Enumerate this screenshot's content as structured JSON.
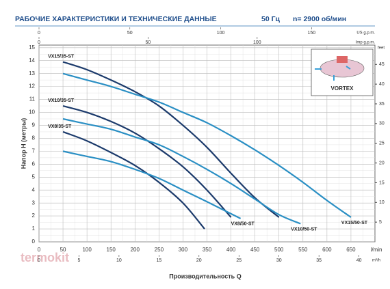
{
  "chart_data": {
    "type": "line",
    "title": "РАБОЧИЕ ХАРАКТЕРИСТИКИ И ТЕХНИЧЕСКИЕ ДАННЫЕ",
    "frequency": "50 Гц",
    "speed": "n= 2900 об/мин",
    "watermark": "termokit",
    "inset_label": "VORTEX",
    "y_label": "Напор H (метры)",
    "x_label": "Производительность Q",
    "x_unit": "l/min",
    "x2_unit": "m³/h",
    "x3_unit": "US g.p.m.",
    "x4_unit": "Imp g.p.m.",
    "y2_unit": "feet",
    "grid": true,
    "xlim": [
      0,
      700
    ],
    "xticks": [
      0,
      50,
      100,
      150,
      200,
      250,
      300,
      350,
      400,
      450,
      500,
      550,
      600,
      650
    ],
    "x2lim": [
      0,
      42
    ],
    "x2ticks": [
      0,
      5,
      10,
      15,
      20,
      25,
      30,
      35,
      40
    ],
    "x3lim": [
      0,
      184.9
    ],
    "x3ticks": [
      0,
      50,
      100,
      150
    ],
    "x4lim": [
      0,
      154
    ],
    "x4ticks": [
      0,
      50,
      100
    ],
    "ylim": [
      0,
      15.2
    ],
    "yticks": [
      0,
      1,
      2,
      3,
      4,
      5,
      6,
      7,
      8,
      9,
      10,
      11,
      12,
      13,
      14,
      15
    ],
    "y2lim": [
      0,
      49.9
    ],
    "y2ticks": [
      5,
      10,
      15,
      20,
      25,
      30,
      35,
      40,
      45
    ],
    "series": [
      {
        "name": "VX15/35-ST",
        "color": "#1b3a6b",
        "x": [
          50,
          100,
          150,
          200,
          250,
          300,
          350,
          400,
          450,
          500
        ],
        "values": [
          13.9,
          13.3,
          12.5,
          11.6,
          10.5,
          9.0,
          7.3,
          5.3,
          3.4,
          1.9
        ]
      },
      {
        "name": "VX15/50-ST",
        "color": "#2a8fc4",
        "x": [
          50,
          100,
          150,
          200,
          250,
          300,
          350,
          400,
          450,
          500,
          550,
          600,
          650
        ],
        "values": [
          13.0,
          12.5,
          12.0,
          11.4,
          10.8,
          10.0,
          9.2,
          8.2,
          7.1,
          5.9,
          4.6,
          3.2,
          1.9
        ]
      },
      {
        "name": "VX10/35-ST",
        "color": "#1b3a6b",
        "x": [
          50,
          100,
          150,
          200,
          250,
          300,
          350,
          400
        ],
        "values": [
          10.5,
          10.0,
          9.3,
          8.4,
          7.2,
          5.8,
          4.0,
          1.9
        ]
      },
      {
        "name": "VX10/50-ST",
        "color": "#2a8fc4",
        "x": [
          50,
          100,
          150,
          200,
          250,
          300,
          350,
          400,
          450,
          500,
          545
        ],
        "values": [
          9.5,
          9.1,
          8.7,
          8.1,
          7.5,
          6.6,
          5.6,
          4.5,
          3.3,
          2.1,
          1.4
        ]
      },
      {
        "name": "VX8/35-ST",
        "color": "#1b3a6b",
        "x": [
          50,
          100,
          150,
          200,
          250,
          300,
          345
        ],
        "values": [
          8.5,
          7.8,
          6.9,
          5.9,
          4.6,
          3.0,
          1.0
        ]
      },
      {
        "name": "VX8/50-ST",
        "color": "#2a8fc4",
        "x": [
          50,
          100,
          150,
          200,
          250,
          300,
          350,
          420
        ],
        "values": [
          7.0,
          6.6,
          6.2,
          5.6,
          4.9,
          4.0,
          3.1,
          1.8
        ]
      }
    ]
  }
}
